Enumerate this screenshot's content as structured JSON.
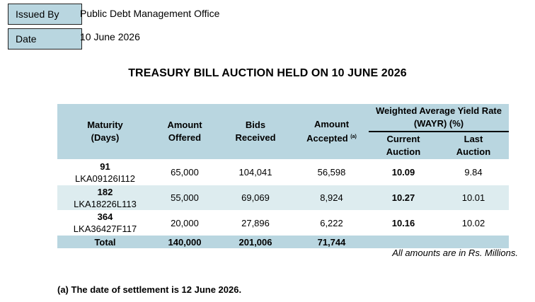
{
  "meta": {
    "issued_by_label": "Issued By",
    "issued_by_value": "Public Debt Management Office",
    "date_label": "Date",
    "date_value": "10 June 2026"
  },
  "title": "TREASURY BILL AUCTION HELD ON 10 JUNE 2026",
  "table": {
    "headers": {
      "maturity_line1": "Maturity",
      "maturity_line2": "(Days)",
      "offered_line1": "Amount",
      "offered_line2": "Offered",
      "bids_line1": "Bids",
      "bids_line2": "Received",
      "accepted_line1": "Amount",
      "accepted_line2": "Accepted",
      "accepted_sup": "(a)",
      "wayr_line1": "Weighted Average Yield Rate",
      "wayr_line2": "(WAYR) (%)",
      "current_line1": "Current",
      "current_line2": "Auction",
      "last_line1": "Last",
      "last_line2": "Auction"
    },
    "rows": [
      {
        "days": "91",
        "code": "LKA09126I112",
        "offered": "65,000",
        "bids": "104,041",
        "accepted": "56,598",
        "current": "10.09",
        "last": "9.84"
      },
      {
        "days": "182",
        "code": "LKA18226L113",
        "offered": "55,000",
        "bids": "69,069",
        "accepted": "8,924",
        "current": "10.27",
        "last": "10.01"
      },
      {
        "days": "364",
        "code": "LKA36427F117",
        "offered": "20,000",
        "bids": "27,896",
        "accepted": "6,222",
        "current": "10.16",
        "last": "10.02"
      }
    ],
    "total": {
      "label": "Total",
      "offered": "140,000",
      "bids": "201,006",
      "accepted": "71,744"
    }
  },
  "amounts_note": "All amounts are in Rs. Millions.",
  "footnote": "(a) The date of settlement is 12 June 2026.",
  "colors": {
    "header_fill": "#b9d6e0",
    "shaded_row": "#ddecef"
  }
}
